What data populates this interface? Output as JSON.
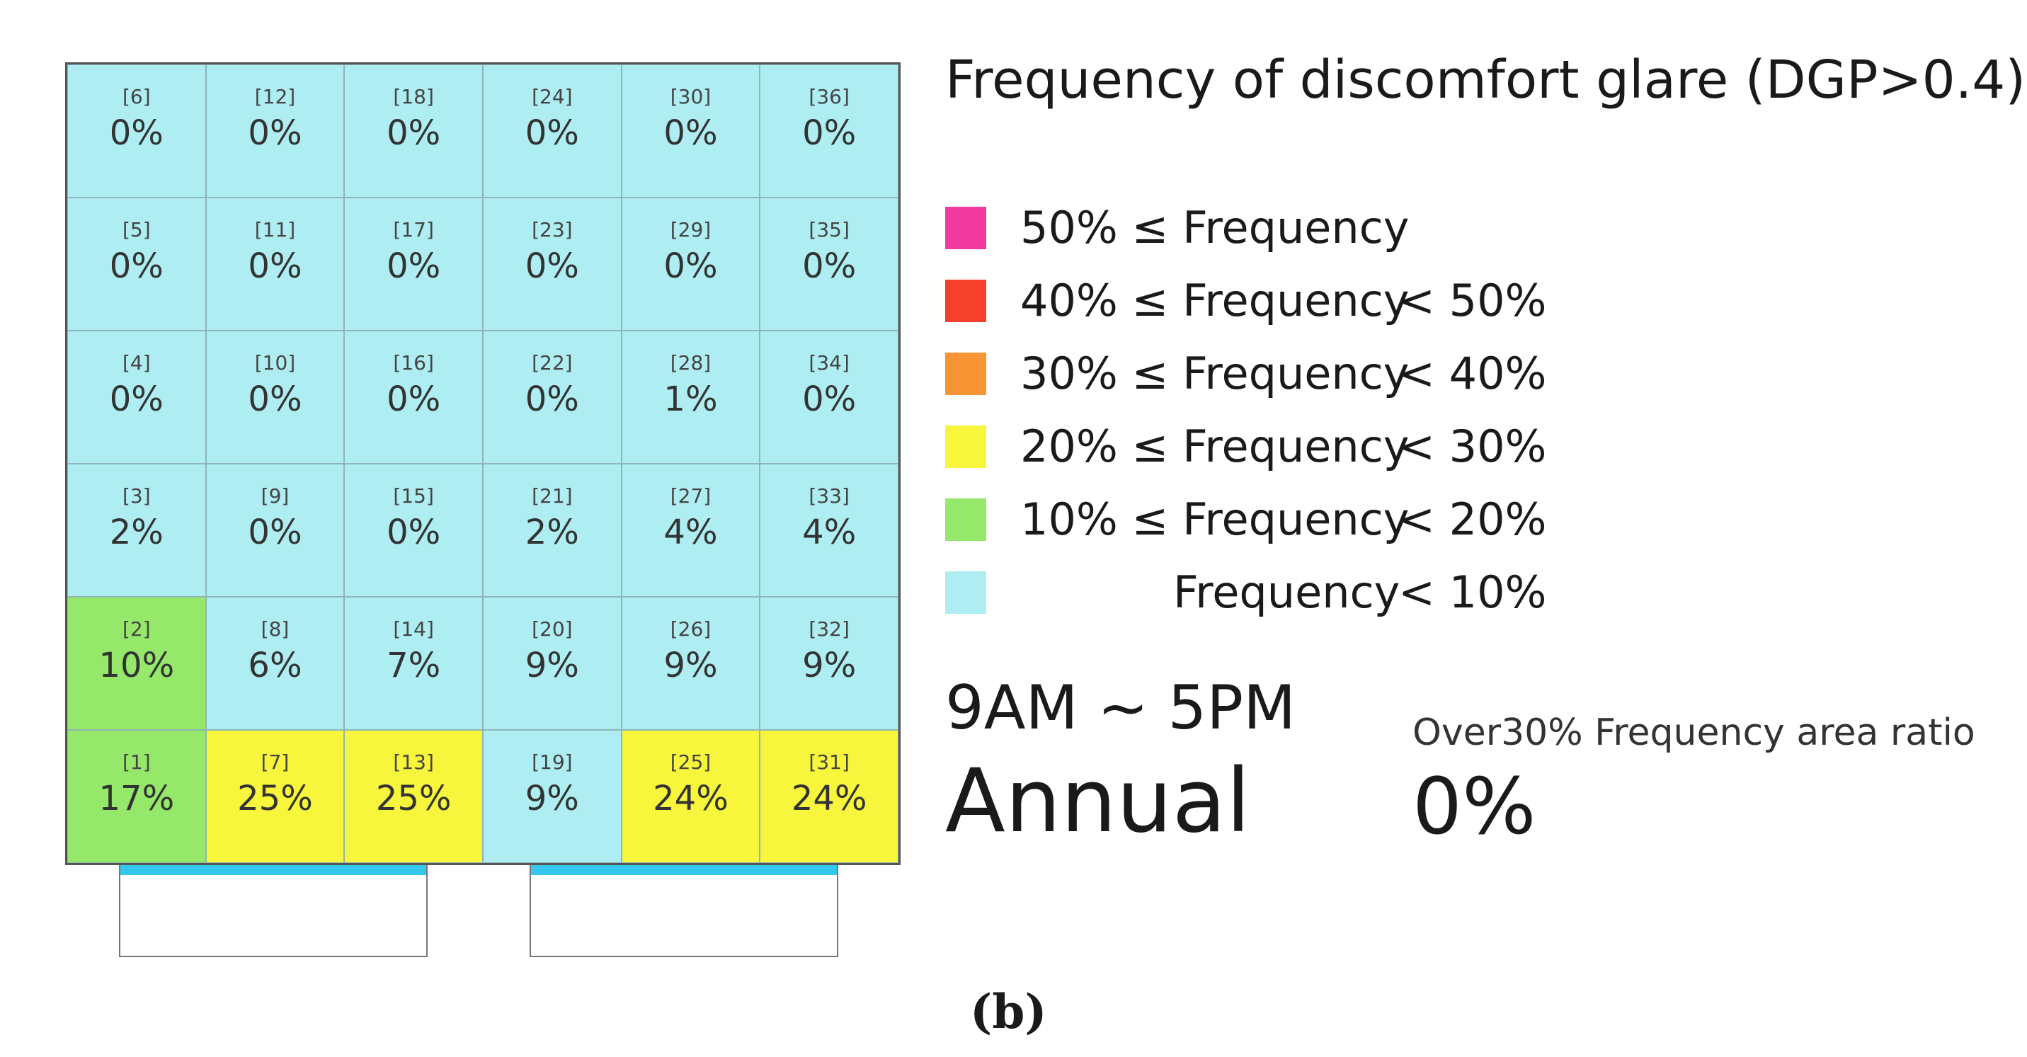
{
  "chart_data": {
    "type": "heatmap",
    "title": "Frequency of discomfort glare (DGP>0.4)",
    "columns": 6,
    "rows": 6,
    "cells": [
      {
        "id": "[6]",
        "value": "0%",
        "category": "lt10"
      },
      {
        "id": "[12]",
        "value": "0%",
        "category": "lt10"
      },
      {
        "id": "[18]",
        "value": "0%",
        "category": "lt10"
      },
      {
        "id": "[24]",
        "value": "0%",
        "category": "lt10"
      },
      {
        "id": "[30]",
        "value": "0%",
        "category": "lt10"
      },
      {
        "id": "[36]",
        "value": "0%",
        "category": "lt10"
      },
      {
        "id": "[5]",
        "value": "0%",
        "category": "lt10"
      },
      {
        "id": "[11]",
        "value": "0%",
        "category": "lt10"
      },
      {
        "id": "[17]",
        "value": "0%",
        "category": "lt10"
      },
      {
        "id": "[23]",
        "value": "0%",
        "category": "lt10"
      },
      {
        "id": "[29]",
        "value": "0%",
        "category": "lt10"
      },
      {
        "id": "[35]",
        "value": "0%",
        "category": "lt10"
      },
      {
        "id": "[4]",
        "value": "0%",
        "category": "lt10"
      },
      {
        "id": "[10]",
        "value": "0%",
        "category": "lt10"
      },
      {
        "id": "[16]",
        "value": "0%",
        "category": "lt10"
      },
      {
        "id": "[22]",
        "value": "0%",
        "category": "lt10"
      },
      {
        "id": "[28]",
        "value": "1%",
        "category": "lt10"
      },
      {
        "id": "[34]",
        "value": "0%",
        "category": "lt10"
      },
      {
        "id": "[3]",
        "value": "2%",
        "category": "lt10"
      },
      {
        "id": "[9]",
        "value": "0%",
        "category": "lt10"
      },
      {
        "id": "[15]",
        "value": "0%",
        "category": "lt10"
      },
      {
        "id": "[21]",
        "value": "2%",
        "category": "lt10"
      },
      {
        "id": "[27]",
        "value": "4%",
        "category": "lt10"
      },
      {
        "id": "[33]",
        "value": "4%",
        "category": "lt10"
      },
      {
        "id": "[2]",
        "value": "10%",
        "category": "10to20"
      },
      {
        "id": "[8]",
        "value": "6%",
        "category": "lt10"
      },
      {
        "id": "[14]",
        "value": "7%",
        "category": "lt10"
      },
      {
        "id": "[20]",
        "value": "9%",
        "category": "lt10"
      },
      {
        "id": "[26]",
        "value": "9%",
        "category": "lt10"
      },
      {
        "id": "[32]",
        "value": "9%",
        "category": "lt10"
      },
      {
        "id": "[1]",
        "value": "17%",
        "category": "10to20"
      },
      {
        "id": "[7]",
        "value": "25%",
        "category": "20to30"
      },
      {
        "id": "[13]",
        "value": "25%",
        "category": "20to30"
      },
      {
        "id": "[19]",
        "value": "9%",
        "category": "lt10"
      },
      {
        "id": "[25]",
        "value": "24%",
        "category": "20to30"
      },
      {
        "id": "[31]",
        "value": "24%",
        "category": "20to30"
      }
    ],
    "legend": [
      {
        "key": "ge50",
        "prefix": "50% ≤ Frequency",
        "suffix": "",
        "color": "#f23ba0"
      },
      {
        "key": "40to50",
        "prefix": "40% ≤ Frequency",
        "suffix": "< 50%",
        "color": "#f5412b"
      },
      {
        "key": "30to40",
        "prefix": "30% ≤ Frequency",
        "suffix": "< 40%",
        "color": "#f99535"
      },
      {
        "key": "20to30",
        "prefix": "20% ≤ Frequency",
        "suffix": "< 30%",
        "color": "#f7f53c"
      },
      {
        "key": "10to20",
        "prefix": "10% ≤ Frequency",
        "suffix": "< 20%",
        "color": "#95e86a"
      },
      {
        "key": "lt10",
        "prefix": "Frequency",
        "suffix": "< 10%",
        "color": "#aeeef2"
      }
    ]
  },
  "info": {
    "time_range": "9AM ~ 5PM",
    "period": "Annual",
    "ratio_label": "Over30% Frequency area ratio",
    "ratio_value": "0%"
  },
  "caption": "(b)",
  "colors": {
    "window_glass": "#35c8ee",
    "grid_border": "#555555"
  }
}
